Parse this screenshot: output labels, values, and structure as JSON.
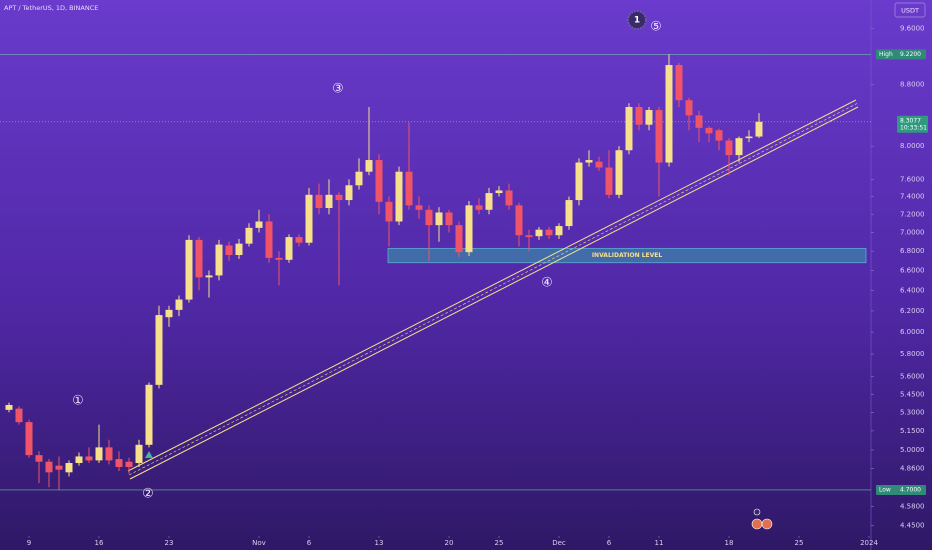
{
  "chart_data": {
    "type": "candlestick",
    "title": "APT / TetherUS, 1D, BINANCE",
    "currency": "USDT",
    "log_scale": true,
    "up_color": "#f7e08c",
    "down_color": "#ef5468",
    "x": [
      6,
      7,
      8,
      9,
      10,
      11,
      12,
      13,
      14,
      15,
      16,
      17,
      18,
      19,
      20,
      21,
      22,
      23,
      24,
      25,
      26,
      27,
      28,
      29,
      30,
      31,
      32,
      33,
      34,
      35,
      36,
      37,
      38,
      39,
      40,
      41,
      42,
      43,
      44,
      45,
      46,
      47,
      48,
      49,
      50,
      51,
      52,
      53,
      54,
      55,
      56,
      57,
      58,
      59,
      60,
      61,
      62,
      63,
      64,
      65,
      66,
      67,
      68,
      69,
      70,
      71,
      72,
      73,
      74,
      75,
      76,
      77,
      78,
      79,
      80,
      81
    ],
    "open": [
      5.32,
      5.33,
      5.22,
      4.96,
      4.91,
      4.88,
      4.83,
      4.9,
      4.95,
      4.92,
      5.02,
      4.93,
      4.91,
      4.9,
      5.04,
      5.53,
      6.14,
      6.21,
      6.31,
      6.92,
      6.53,
      6.55,
      6.86,
      6.76,
      6.88,
      7.05,
      7.12,
      6.73,
      6.71,
      6.95,
      6.89,
      7.42,
      7.27,
      7.42,
      7.36,
      7.53,
      7.69,
      7.83,
      7.34,
      7.12,
      7.69,
      7.3,
      7.25,
      7.08,
      7.22,
      7.08,
      6.79,
      7.3,
      7.25,
      7.44,
      7.47,
      7.3,
      6.97,
      6.96,
      7.03,
      6.97,
      7.07,
      7.36,
      7.8,
      7.81,
      7.74,
      7.42,
      7.95,
      8.5,
      8.27,
      8.46,
      7.8,
      9.07,
      8.59,
      8.39,
      8.23,
      8.2,
      8.07,
      7.89,
      8.1,
      8.12
    ],
    "high": [
      5.38,
      5.35,
      5.24,
      4.99,
      4.93,
      4.95,
      4.92,
      4.98,
      5.02,
      5.2,
      5.08,
      4.99,
      4.94,
      5.08,
      5.55,
      6.25,
      6.25,
      6.35,
      6.97,
      6.95,
      6.6,
      6.92,
      6.9,
      6.93,
      7.1,
      7.25,
      7.2,
      6.8,
      6.98,
      6.98,
      7.5,
      7.55,
      7.6,
      7.45,
      7.6,
      7.85,
      8.5,
      7.9,
      7.4,
      7.75,
      8.3,
      7.4,
      7.3,
      7.28,
      7.25,
      7.12,
      7.35,
      7.38,
      7.5,
      7.52,
      7.55,
      7.33,
      7.03,
      7.06,
      7.06,
      7.1,
      7.4,
      7.85,
      7.95,
      7.87,
      7.95,
      8.0,
      8.55,
      8.55,
      8.5,
      8.5,
      9.22,
      9.1,
      8.62,
      8.45,
      8.25,
      8.22,
      8.1,
      8.12,
      8.2,
      8.42
    ],
    "low": [
      5.3,
      5.2,
      4.94,
      4.75,
      4.72,
      4.7,
      4.8,
      4.88,
      4.9,
      4.9,
      4.89,
      4.84,
      4.82,
      4.87,
      5.02,
      5.5,
      6.05,
      6.15,
      6.28,
      6.4,
      6.33,
      6.5,
      6.7,
      6.72,
      6.85,
      7.0,
      6.68,
      6.45,
      6.68,
      6.85,
      6.86,
      7.2,
      7.2,
      6.45,
      7.3,
      7.48,
      7.65,
      7.2,
      6.85,
      7.08,
      7.25,
      7.15,
      6.7,
      6.9,
      7.0,
      6.74,
      6.75,
      7.2,
      7.2,
      7.4,
      7.25,
      6.85,
      6.8,
      6.92,
      6.93,
      6.93,
      7.03,
      7.3,
      7.75,
      7.7,
      7.38,
      7.38,
      7.9,
      8.2,
      8.2,
      7.4,
      7.75,
      8.5,
      8.2,
      8.05,
      8.05,
      7.95,
      7.65,
      7.8,
      8.05,
      8.1
    ],
    "close": [
      5.36,
      5.22,
      4.96,
      4.91,
      4.83,
      4.85,
      4.9,
      4.95,
      4.92,
      5.02,
      4.92,
      4.87,
      4.87,
      5.04,
      5.53,
      6.16,
      6.21,
      6.31,
      6.92,
      6.53,
      6.55,
      6.87,
      6.76,
      6.88,
      7.05,
      7.12,
      6.73,
      6.71,
      6.95,
      6.89,
      7.42,
      7.27,
      7.42,
      7.36,
      7.53,
      7.69,
      7.83,
      7.34,
      7.12,
      7.69,
      7.3,
      7.25,
      7.08,
      7.22,
      7.08,
      6.79,
      7.3,
      7.25,
      7.44,
      7.47,
      7.3,
      6.97,
      6.95,
      7.03,
      6.97,
      7.07,
      7.36,
      7.8,
      7.83,
      7.74,
      7.42,
      7.95,
      8.5,
      8.27,
      8.46,
      7.8,
      9.07,
      8.59,
      8.39,
      8.23,
      8.16,
      8.07,
      7.89,
      8.1,
      8.12,
      8.3077
    ],
    "xlim": [
      5.1,
      92.1
    ],
    "xticks": [
      {
        "value": 8,
        "label": "9"
      },
      {
        "value": 15,
        "label": "16"
      },
      {
        "value": 22,
        "label": "23"
      },
      {
        "value": 31,
        "label": "Nov"
      },
      {
        "value": 36,
        "label": "6"
      },
      {
        "value": 43,
        "label": "13"
      },
      {
        "value": 50,
        "label": "20"
      },
      {
        "value": 55,
        "label": "25"
      },
      {
        "value": 61,
        "label": "Dec"
      },
      {
        "value": 66,
        "label": "6"
      },
      {
        "value": 71,
        "label": "11"
      },
      {
        "value": 78,
        "label": "18"
      },
      {
        "value": 85,
        "label": "25"
      },
      {
        "value": 92,
        "label": "2024"
      }
    ],
    "ylim": [
      4.283,
      10.03
    ],
    "yticks": [
      {
        "value": 9.6,
        "label": "9.6000"
      },
      {
        "value": 8.8,
        "label": "8.8000"
      },
      {
        "value": 8,
        "label": "8.0000"
      },
      {
        "value": 7.6,
        "label": "7.6000"
      },
      {
        "value": 7.4,
        "label": "7.4000"
      },
      {
        "value": 7.2,
        "label": "7.2000"
      },
      {
        "value": 7,
        "label": "7.0000"
      },
      {
        "value": 6.8,
        "label": "6.8000"
      },
      {
        "value": 6.6,
        "label": "6.6000"
      },
      {
        "value": 6.4,
        "label": "6.4000"
      },
      {
        "value": 6.2,
        "label": "6.2000"
      },
      {
        "value": 6,
        "label": "6.0000"
      },
      {
        "value": 5.8,
        "label": "5.8000"
      },
      {
        "value": 5.6,
        "label": "5.6000"
      },
      {
        "value": 5.45,
        "label": "5.4500"
      },
      {
        "value": 5.3,
        "label": "5.3000"
      },
      {
        "value": 5.15,
        "label": "5.1500"
      },
      {
        "value": 5,
        "label": "5.0000"
      },
      {
        "value": 4.86,
        "label": "4.8600"
      },
      {
        "value": 4.58,
        "label": "4.5800"
      },
      {
        "value": 4.45,
        "label": "4.4500"
      }
    ],
    "price_lines": [
      {
        "name": "High",
        "value": 9.22,
        "label": "9.2200"
      },
      {
        "name": "Low",
        "value": 4.7,
        "label": "4.7000"
      }
    ],
    "last_price": 8.3077,
    "countdown": "10:33:51",
    "zone": {
      "label": "INVALIDATION LEVEL",
      "range": [
        6.68,
        6.83
      ]
    },
    "wave_labels": [
      "①",
      "②",
      "③",
      "④",
      "⑤",
      "1"
    ]
  }
}
